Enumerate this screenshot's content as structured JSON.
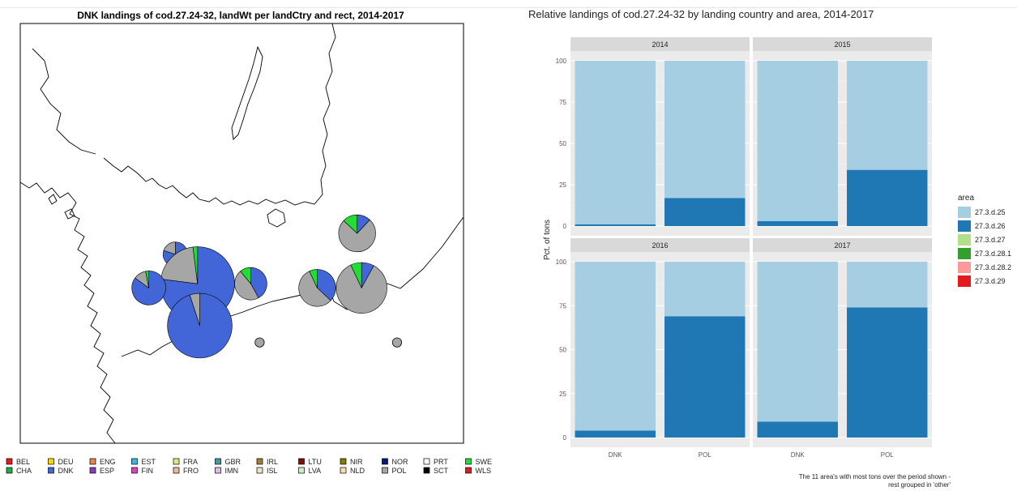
{
  "chart_data": [
    {
      "type": "map-pie",
      "title": "DNK landings of cod.27.24-32, landWt per landCtry and rect, 2014-2017",
      "legend": [
        {
          "code": "BEL",
          "color": "#e41a1c"
        },
        {
          "code": "DEU",
          "color": "#ffd700"
        },
        {
          "code": "ENG",
          "color": "#e6854a"
        },
        {
          "code": "EST",
          "color": "#38b6e8"
        },
        {
          "code": "FRA",
          "color": "#d7e98b"
        },
        {
          "code": "GBR",
          "color": "#4a9a9a"
        },
        {
          "code": "IRL",
          "color": "#a67c3d"
        },
        {
          "code": "LTU",
          "color": "#7b1010"
        },
        {
          "code": "NIR",
          "color": "#7f7f00"
        },
        {
          "code": "NOR",
          "color": "#0a1a7a"
        },
        {
          "code": "PRT",
          "color": "#ffffff"
        },
        {
          "code": "SWE",
          "color": "#22dd33"
        },
        {
          "code": "CHA",
          "color": "#22a844"
        },
        {
          "code": "DNK",
          "color": "#4266d8"
        },
        {
          "code": "ESP",
          "color": "#8a3bbf"
        },
        {
          "code": "FIN",
          "color": "#e040c8"
        },
        {
          "code": "FRO",
          "color": "#f2b59a"
        },
        {
          "code": "IMN",
          "color": "#e6b8e6"
        },
        {
          "code": "ISL",
          "color": "#f0e0c8"
        },
        {
          "code": "LVA",
          "color": "#c8f0c8"
        },
        {
          "code": "NLD",
          "color": "#f5deb3"
        },
        {
          "code": "POL",
          "color": "#a6a6a6"
        },
        {
          "code": "SCT",
          "color": "#000000"
        },
        {
          "code": "WLS",
          "color": "#e41a1c"
        }
      ],
      "pies": [
        {
          "lon": 13.5,
          "lat": 55.75,
          "size": 1.6,
          "slices": [
            {
              "country": "DNK",
              "value": 80
            },
            {
              "country": "POL",
              "value": 20
            }
          ]
        },
        {
          "lon": 14.0,
          "lat": 55.4,
          "size": 4.8,
          "slices": [
            {
              "country": "DNK",
              "value": 77
            },
            {
              "country": "POL",
              "value": 21
            },
            {
              "country": "SWE",
              "value": 2
            }
          ]
        },
        {
          "lon": 14.05,
          "lat": 54.9,
          "size": 4.2,
          "slices": [
            {
              "country": "DNK",
              "value": 95
            },
            {
              "country": "POL",
              "value": 5
            }
          ]
        },
        {
          "lon": 12.9,
          "lat": 55.35,
          "size": 2.2,
          "slices": [
            {
              "country": "DNK",
              "value": 85
            },
            {
              "country": "POL",
              "value": 12
            },
            {
              "country": "SWE",
              "value": 3
            }
          ]
        },
        {
          "lon": 15.2,
          "lat": 55.4,
          "size": 2.1,
          "slices": [
            {
              "country": "DNK",
              "value": 42
            },
            {
              "country": "POL",
              "value": 47
            },
            {
              "country": "SWE",
              "value": 11
            }
          ]
        },
        {
          "lon": 16.7,
          "lat": 55.35,
          "size": 2.4,
          "slices": [
            {
              "country": "DNK",
              "value": 37
            },
            {
              "country": "POL",
              "value": 56
            },
            {
              "country": "SWE",
              "value": 7
            }
          ]
        },
        {
          "lon": 17.6,
          "lat": 56.0,
          "size": 2.4,
          "slices": [
            {
              "country": "DNK",
              "value": 12
            },
            {
              "country": "POL",
              "value": 75
            },
            {
              "country": "SWE",
              "value": 13
            }
          ]
        },
        {
          "lon": 17.7,
          "lat": 55.35,
          "size": 3.3,
          "slices": [
            {
              "country": "DNK",
              "value": 8
            },
            {
              "country": "POL",
              "value": 85
            },
            {
              "country": "SWE",
              "value": 7
            }
          ]
        },
        {
          "lon": 15.4,
          "lat": 54.7,
          "size": 0.6,
          "slices": [
            {
              "country": "POL",
              "value": 100
            }
          ]
        },
        {
          "lon": 18.5,
          "lat": 54.7,
          "size": 0.6,
          "slices": [
            {
              "country": "POL",
              "value": 100
            }
          ]
        }
      ]
    },
    {
      "type": "bar",
      "stacked": true,
      "title": "Relative landings of cod.27.24-32 by landing country and area, 2014-2017",
      "ylabel": "Pct. of tons",
      "ylim": [
        0,
        100
      ],
      "yticks": [
        0,
        25,
        50,
        75,
        100
      ],
      "categories": [
        "DNK",
        "POL"
      ],
      "legend_title": "area",
      "legend": [
        {
          "name": "27.3.d.25",
          "color": "#a6cee3"
        },
        {
          "name": "27.3.d.26",
          "color": "#1f78b4"
        },
        {
          "name": "27.3.d.27",
          "color": "#b2df8a"
        },
        {
          "name": "27.3.d.28.1",
          "color": "#33a02c"
        },
        {
          "name": "27.3.d.28.2",
          "color": "#fb9a99"
        },
        {
          "name": "27.3.d.29",
          "color": "#e31a1c"
        }
      ],
      "facets": [
        {
          "label": "2014",
          "values": [
            {
              "27.3.d.25": 99,
              "27.3.d.26": 1
            },
            {
              "27.3.d.25": 83,
              "27.3.d.26": 17
            }
          ]
        },
        {
          "label": "2015",
          "values": [
            {
              "27.3.d.25": 97,
              "27.3.d.26": 3
            },
            {
              "27.3.d.25": 66,
              "27.3.d.26": 34
            }
          ]
        },
        {
          "label": "2016",
          "values": [
            {
              "27.3.d.25": 96,
              "27.3.d.26": 4
            },
            {
              "27.3.d.25": 31,
              "27.3.d.26": 69
            }
          ]
        },
        {
          "label": "2017",
          "values": [
            {
              "27.3.d.25": 91,
              "27.3.d.26": 9
            },
            {
              "27.3.d.25": 26,
              "27.3.d.26": 74
            }
          ]
        }
      ],
      "caption_lines": [
        "The 11 area's with most tons over the period shown -",
        "rest grouped in 'other'"
      ]
    }
  ]
}
